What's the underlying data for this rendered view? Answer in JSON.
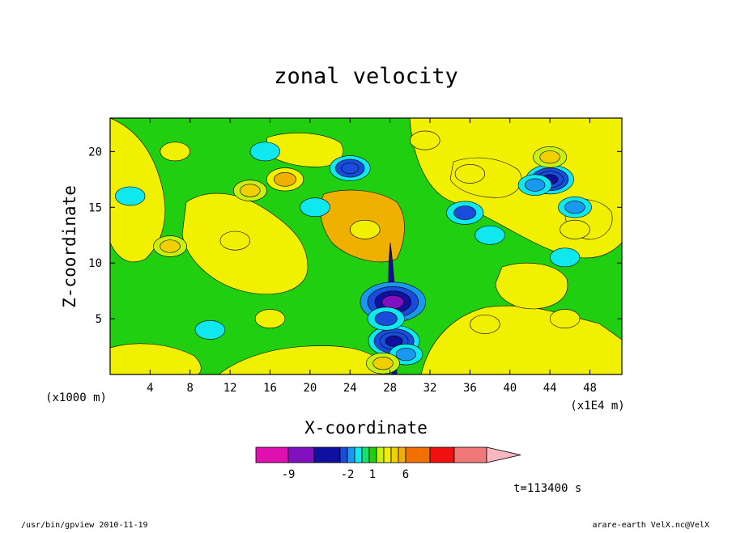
{
  "chart_data": {
    "type": "heatmap",
    "title": "zonal velocity",
    "xlabel": "X-coordinate",
    "ylabel": "Z-coordinate",
    "x_unit": "(x1E4 m)",
    "y_unit": "(x1000 m)",
    "xlim": [
      0,
      51.2
    ],
    "ylim": [
      0,
      23
    ],
    "x_ticks": [
      4,
      8,
      12,
      16,
      20,
      24,
      28,
      32,
      36,
      40,
      44,
      48
    ],
    "y_ticks": [
      5,
      10,
      15,
      20
    ],
    "colorbar": {
      "colors": [
        "#e010b0",
        "#8010c0",
        "#1010a0",
        "#1a4cdc",
        "#1a98f0",
        "#10e8f0",
        "#18e070",
        "#20d010",
        "#c8f010",
        "#f0f000",
        "#f0d000",
        "#f0b000",
        "#f07000",
        "#f01010",
        "#f07878",
        "#f8b8c0"
      ],
      "labels": [
        {
          "text": "-9",
          "value": -9
        },
        {
          "text": "-2",
          "value": -2
        },
        {
          "text": "1",
          "value": 1
        },
        {
          "text": "6",
          "value": 6
        }
      ]
    },
    "features": [
      {
        "x": 28.3,
        "z": 6.5,
        "value": -12
      },
      {
        "x": 28.4,
        "z": 3.0,
        "value": -8
      },
      {
        "x": 27.6,
        "z": 5.0,
        "value": -4
      },
      {
        "x": 29.6,
        "z": 1.8,
        "value": -3
      },
      {
        "x": 27.3,
        "z": 1.0,
        "value": 3
      },
      {
        "x": 44.0,
        "z": 17.5,
        "value": -7
      },
      {
        "x": 42.5,
        "z": 17.0,
        "value": -3
      },
      {
        "x": 46.5,
        "z": 15.0,
        "value": -3
      },
      {
        "x": 35.5,
        "z": 14.5,
        "value": -4
      },
      {
        "x": 38.0,
        "z": 12.5,
        "value": -2
      },
      {
        "x": 45.5,
        "z": 10.5,
        "value": -2
      },
      {
        "x": 24.0,
        "z": 18.5,
        "value": -5
      },
      {
        "x": 15.5,
        "z": 20.0,
        "value": -2
      },
      {
        "x": 20.5,
        "z": 15.0,
        "value": -2
      },
      {
        "x": 10.0,
        "z": 4.0,
        "value": -2
      },
      {
        "x": 2.0,
        "z": 16.0,
        "value": -2
      },
      {
        "x": 17.5,
        "z": 17.5,
        "value": 4
      },
      {
        "x": 14.0,
        "z": 16.5,
        "value": 3
      },
      {
        "x": 6.0,
        "z": 11.5,
        "value": 3
      },
      {
        "x": 12.5,
        "z": 12.0,
        "value": 2
      },
      {
        "x": 25.5,
        "z": 13.0,
        "value": 2
      },
      {
        "x": 36.0,
        "z": 18.0,
        "value": 2
      },
      {
        "x": 44.0,
        "z": 19.5,
        "value": 3
      },
      {
        "x": 46.5,
        "z": 13.0,
        "value": 2
      },
      {
        "x": 45.5,
        "z": 5.0,
        "value": 2
      },
      {
        "x": 37.5,
        "z": 4.5,
        "value": 2
      },
      {
        "x": 16.0,
        "z": 5.0,
        "value": 2
      },
      {
        "x": 31.5,
        "z": 21.0,
        "value": 2
      },
      {
        "x": 6.5,
        "z": 20.0,
        "value": 2
      }
    ]
  },
  "footer": {
    "left": "/usr/bin/gpview  2010-11-19",
    "right": "arare-earth_VelX.nc@VelX",
    "time": "t=113400 s"
  }
}
